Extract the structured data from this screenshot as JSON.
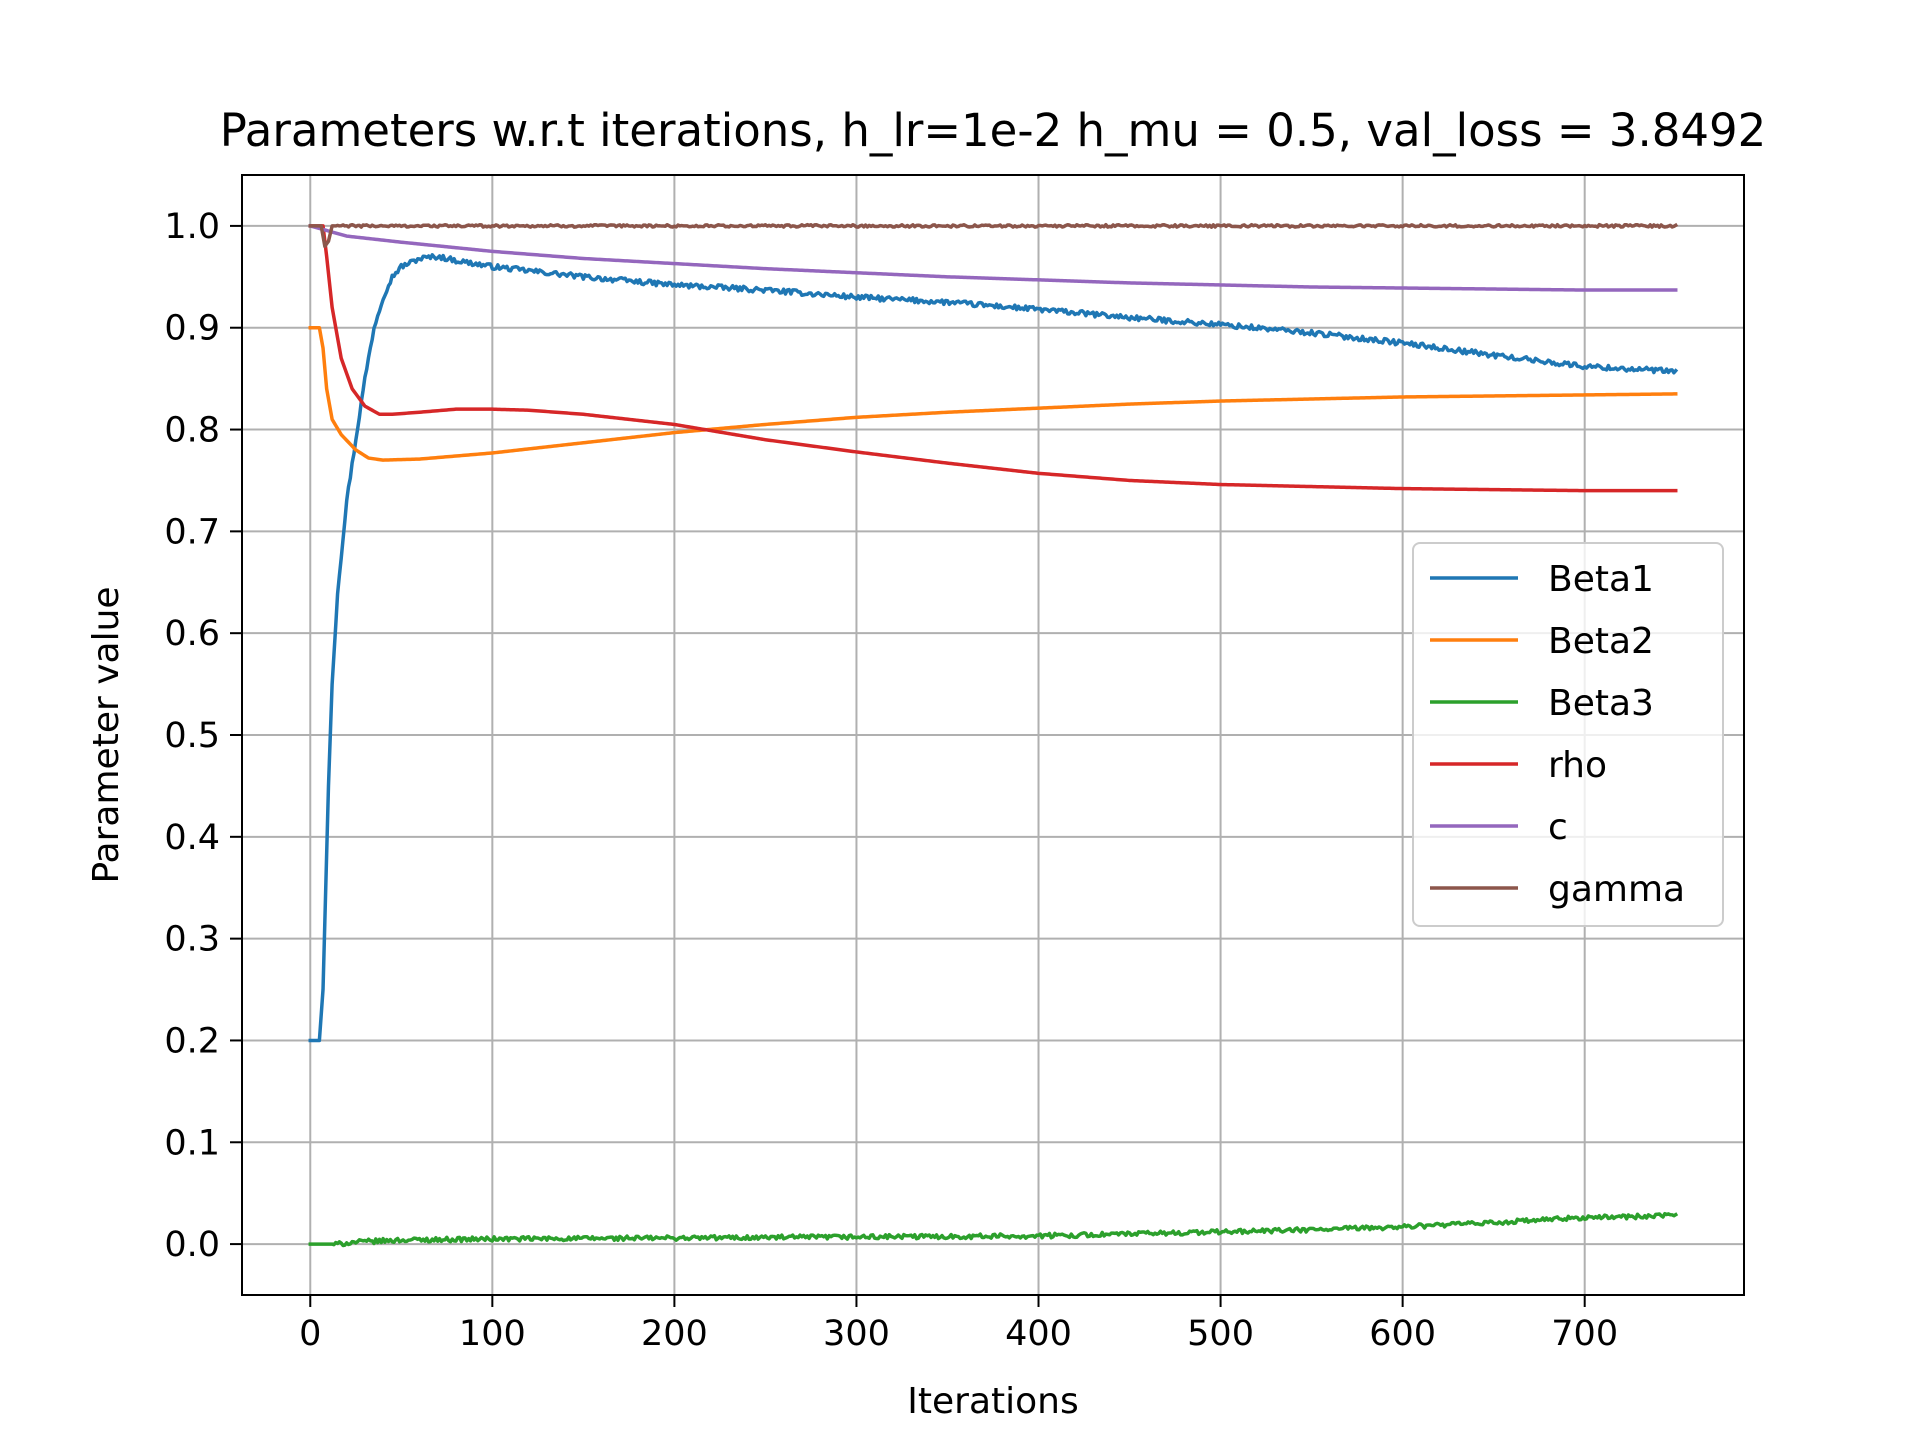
{
  "chart_data": {
    "type": "line",
    "title": "Parameters w.r.t iterations, h_lr=1e-2 h_mu = 0.5, val_loss = 3.8492",
    "xlabel": "Iterations",
    "ylabel": "Parameter value",
    "xlim": [
      -37.5,
      787.5
    ],
    "ylim": [
      -0.05,
      1.05
    ],
    "xticks": [
      0,
      100,
      200,
      300,
      400,
      500,
      600,
      700
    ],
    "xtick_labels": [
      "0",
      "100",
      "200",
      "300",
      "400",
      "500",
      "600",
      "700"
    ],
    "yticks": [
      0.0,
      0.1,
      0.2,
      0.3,
      0.4,
      0.5,
      0.6,
      0.7,
      0.8,
      0.9,
      1.0
    ],
    "ytick_labels": [
      "0.0",
      "0.1",
      "0.2",
      "0.3",
      "0.4",
      "0.5",
      "0.6",
      "0.7",
      "0.8",
      "0.9",
      "1.0"
    ],
    "grid": true,
    "legend_position": "center-right",
    "series": [
      {
        "name": "Beta1",
        "color": "#1f77b4",
        "noise": 0.0025,
        "points": [
          [
            0,
            0.2
          ],
          [
            5,
            0.2
          ],
          [
            7,
            0.25
          ],
          [
            10,
            0.45
          ],
          [
            12,
            0.55
          ],
          [
            15,
            0.64
          ],
          [
            20,
            0.73
          ],
          [
            25,
            0.79
          ],
          [
            30,
            0.85
          ],
          [
            35,
            0.9
          ],
          [
            40,
            0.93
          ],
          [
            45,
            0.95
          ],
          [
            50,
            0.96
          ],
          [
            60,
            0.968
          ],
          [
            70,
            0.97
          ],
          [
            80,
            0.966
          ],
          [
            100,
            0.96
          ],
          [
            150,
            0.95
          ],
          [
            200,
            0.942
          ],
          [
            250,
            0.937
          ],
          [
            300,
            0.93
          ],
          [
            350,
            0.925
          ],
          [
            400,
            0.918
          ],
          [
            450,
            0.91
          ],
          [
            500,
            0.903
          ],
          [
            550,
            0.895
          ],
          [
            600,
            0.885
          ],
          [
            650,
            0.873
          ],
          [
            700,
            0.862
          ],
          [
            750,
            0.857
          ]
        ]
      },
      {
        "name": "Beta2",
        "color": "#ff7f0e",
        "noise": 0,
        "points": [
          [
            0,
            0.9
          ],
          [
            5,
            0.9
          ],
          [
            7,
            0.88
          ],
          [
            9,
            0.84
          ],
          [
            12,
            0.81
          ],
          [
            17,
            0.795
          ],
          [
            25,
            0.78
          ],
          [
            32,
            0.772
          ],
          [
            40,
            0.77
          ],
          [
            60,
            0.771
          ],
          [
            100,
            0.777
          ],
          [
            150,
            0.787
          ],
          [
            200,
            0.797
          ],
          [
            250,
            0.805
          ],
          [
            300,
            0.812
          ],
          [
            350,
            0.817
          ],
          [
            400,
            0.821
          ],
          [
            450,
            0.825
          ],
          [
            500,
            0.828
          ],
          [
            550,
            0.83
          ],
          [
            600,
            0.832
          ],
          [
            650,
            0.833
          ],
          [
            700,
            0.834
          ],
          [
            750,
            0.835
          ]
        ]
      },
      {
        "name": "Beta3",
        "color": "#2ca02c",
        "noise": 0.0022,
        "points": [
          [
            0,
            0.0
          ],
          [
            15,
            0.0
          ],
          [
            25,
            0.002
          ],
          [
            50,
            0.004
          ],
          [
            100,
            0.005
          ],
          [
            200,
            0.006
          ],
          [
            300,
            0.007
          ],
          [
            400,
            0.008
          ],
          [
            450,
            0.01
          ],
          [
            500,
            0.012
          ],
          [
            550,
            0.014
          ],
          [
            600,
            0.017
          ],
          [
            650,
            0.021
          ],
          [
            700,
            0.026
          ],
          [
            750,
            0.028
          ]
        ]
      },
      {
        "name": "rho",
        "color": "#d62728",
        "noise": 0,
        "points": [
          [
            0,
            1.0
          ],
          [
            7,
            1.0
          ],
          [
            9,
            0.97
          ],
          [
            12,
            0.92
          ],
          [
            17,
            0.87
          ],
          [
            23,
            0.84
          ],
          [
            30,
            0.823
          ],
          [
            38,
            0.815
          ],
          [
            45,
            0.815
          ],
          [
            60,
            0.817
          ],
          [
            80,
            0.82
          ],
          [
            100,
            0.82
          ],
          [
            120,
            0.819
          ],
          [
            150,
            0.815
          ],
          [
            200,
            0.805
          ],
          [
            250,
            0.79
          ],
          [
            300,
            0.778
          ],
          [
            350,
            0.767
          ],
          [
            400,
            0.757
          ],
          [
            450,
            0.75
          ],
          [
            500,
            0.746
          ],
          [
            550,
            0.744
          ],
          [
            600,
            0.742
          ],
          [
            650,
            0.741
          ],
          [
            700,
            0.74
          ],
          [
            750,
            0.74
          ]
        ]
      },
      {
        "name": "c",
        "color": "#9467bd",
        "noise": 0,
        "points": [
          [
            0,
            1.0
          ],
          [
            10,
            0.995
          ],
          [
            20,
            0.99
          ],
          [
            50,
            0.984
          ],
          [
            100,
            0.975
          ],
          [
            150,
            0.968
          ],
          [
            200,
            0.963
          ],
          [
            250,
            0.958
          ],
          [
            300,
            0.954
          ],
          [
            350,
            0.95
          ],
          [
            400,
            0.947
          ],
          [
            450,
            0.944
          ],
          [
            500,
            0.942
          ],
          [
            550,
            0.94
          ],
          [
            600,
            0.939
          ],
          [
            650,
            0.938
          ],
          [
            700,
            0.937
          ],
          [
            750,
            0.937
          ]
        ]
      },
      {
        "name": "gamma",
        "color": "#8c564b",
        "noise": 0.0012,
        "points": [
          [
            0,
            1.0
          ],
          [
            6,
            1.0
          ],
          [
            8,
            0.98
          ],
          [
            10,
            0.985
          ],
          [
            12,
            1.0
          ],
          [
            750,
            1.0
          ]
        ]
      }
    ]
  }
}
